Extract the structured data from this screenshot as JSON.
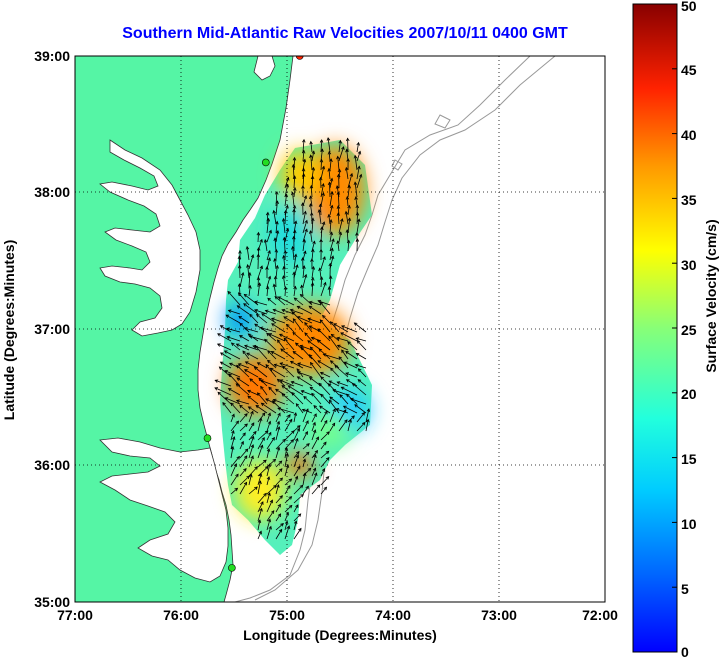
{
  "title": "Southern Mid-Atlantic Raw Velocities 2007/10/11 0400 GMT",
  "xlabel": "Longitude (Degrees:Minutes)",
  "ylabel": "Latitude (Degrees:Minutes)",
  "colorbar_label": "Surface Velocity (cm/s)",
  "x_ticks": [
    "77:00",
    "76:00",
    "75:00",
    "74:00",
    "73:00",
    "72:00"
  ],
  "y_ticks": [
    "39:00",
    "38:00",
    "37:00",
    "36:00",
    "35:00"
  ],
  "colorbar_ticks": [
    "50",
    "45",
    "40",
    "35",
    "30",
    "25",
    "20",
    "15",
    "10",
    "5",
    "0"
  ],
  "colors": {
    "land": "#55f5a5",
    "title": "#0000ff",
    "station": "#22dd22",
    "station_red": "#ff2200"
  },
  "chart_data": {
    "type": "heatmap",
    "xlim": [
      -77,
      -72
    ],
    "ylim": [
      35,
      39
    ],
    "clim": [
      0,
      50
    ],
    "colormap": "jet",
    "grid": true,
    "stations": [
      {
        "lon": -75.2,
        "lat": 38.22,
        "color": "station"
      },
      {
        "lon": -75.75,
        "lat": 36.2,
        "color": "station"
      },
      {
        "lon": -75.52,
        "lat": 35.25,
        "color": "station"
      },
      {
        "lon": -74.88,
        "lat": 39.0,
        "color": "station_red"
      }
    ],
    "velocity_hotspots": [
      {
        "lon": -74.55,
        "lat": 38.0,
        "value": 40
      },
      {
        "lon": -75.0,
        "lat": 36.8,
        "value": 38
      },
      {
        "lon": -75.45,
        "lat": 36.4,
        "value": 37
      },
      {
        "lon": -74.95,
        "lat": 36.0,
        "value": 40
      },
      {
        "lon": -75.45,
        "lat": 37.25,
        "value": 8
      },
      {
        "lon": -74.45,
        "lat": 36.35,
        "value": 12
      }
    ]
  }
}
